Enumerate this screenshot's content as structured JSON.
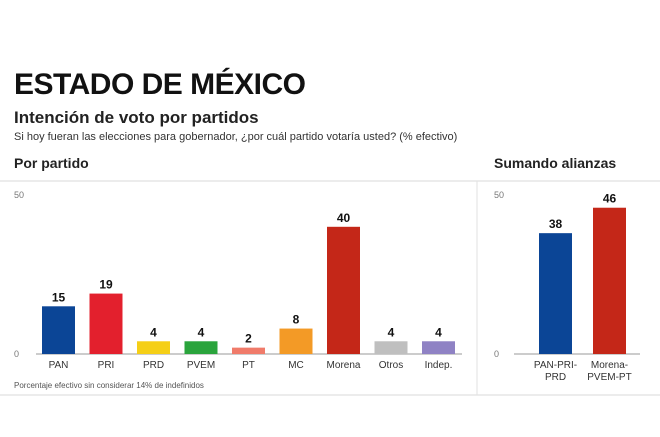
{
  "header": {
    "title": "ESTADO DE MÉXICO",
    "subtitle": "Intención de voto por partidos",
    "question": "Si hoy fueran las elecciones para gobernador, ¿por cuál partido votaría usted? (% efectivo)"
  },
  "sections": {
    "left_label": "Por partido",
    "right_label": "Sumando alianzas"
  },
  "footnote": "Porcentaje efectivo sin considerar 14% de indefinidos",
  "chart_data": [
    {
      "type": "bar",
      "title": "Por partido",
      "ylim": [
        0,
        50
      ],
      "yticks": [
        "50",
        "0"
      ],
      "categories": [
        "PAN",
        "PRI",
        "PRD",
        "PVEM",
        "PT",
        "MC",
        "Morena",
        "Otros",
        "Indep."
      ],
      "values": [
        15,
        19,
        4,
        4,
        2,
        8,
        40,
        4,
        4
      ],
      "labels": [
        "15",
        "19",
        "4",
        "4",
        "2",
        "8",
        "40",
        "4",
        "4"
      ],
      "colors": [
        "#0b4596",
        "#e3202d",
        "#f5cf17",
        "#2aa43c",
        "#f07b6a",
        "#f39a26",
        "#c42718",
        "#bfbfbf",
        "#8f82c4"
      ],
      "grid": false
    },
    {
      "type": "bar",
      "title": "Sumando alianzas",
      "ylim": [
        0,
        50
      ],
      "yticks": [
        "50",
        "0"
      ],
      "categories": [
        "PAN-PRI-PRD",
        "Morena-PVEM-PT"
      ],
      "category_lines": [
        [
          "PAN-PRI-",
          "PRD"
        ],
        [
          "Morena-",
          "PVEM-PT"
        ]
      ],
      "values": [
        38,
        46
      ],
      "labels": [
        "38",
        "46"
      ],
      "colors": [
        "#0b4596",
        "#c42718"
      ],
      "grid": false
    }
  ]
}
